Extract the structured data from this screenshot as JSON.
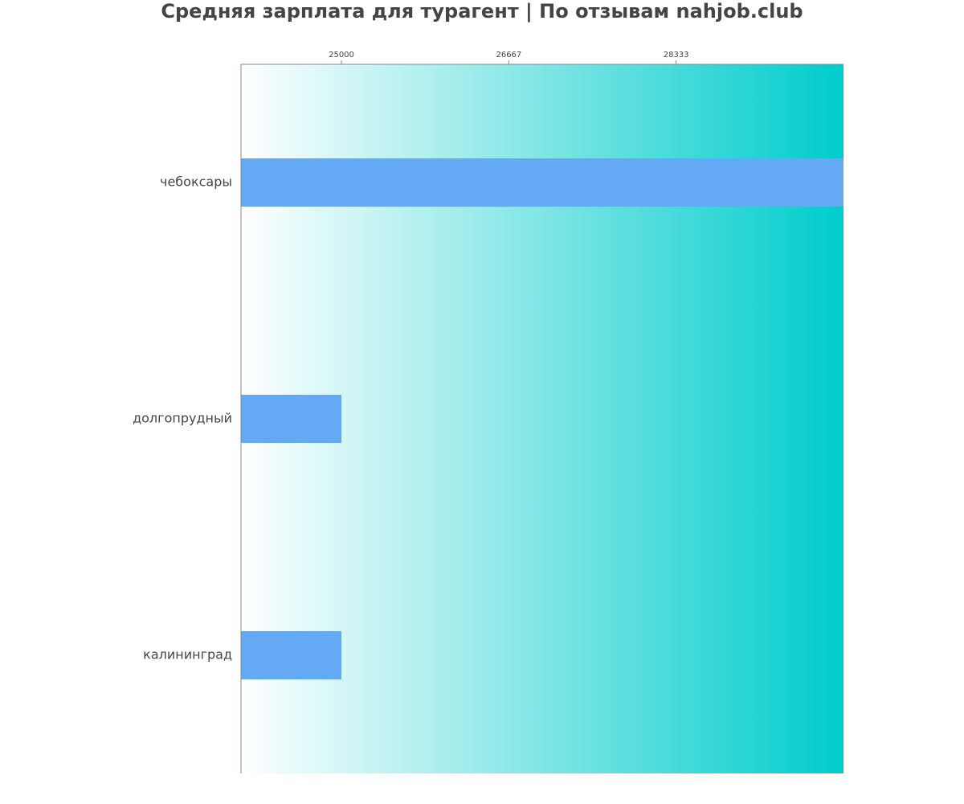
{
  "chart_data": {
    "type": "barh",
    "title": "Средняя зарплата для турагент | По отзывам nahjob.club",
    "categories": [
      "чебоксары",
      "долгопрудный",
      "калининград"
    ],
    "values": [
      30000,
      25000,
      25000
    ],
    "color": "#63a9f4",
    "xlim": [
      24000,
      30000
    ],
    "xticks": [
      25000,
      26667,
      28333
    ],
    "background_gradient": [
      "#ffffff",
      "#00cccc"
    ]
  }
}
